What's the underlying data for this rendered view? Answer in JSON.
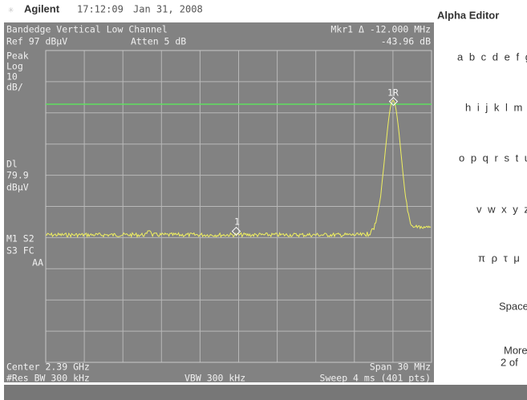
{
  "header": {
    "brand": "Agilent",
    "time": "17:12:09",
    "date": "Jan 31, 2008"
  },
  "screen": {
    "title": "Bandedge Vertical Low Channel",
    "ref": "Ref 97 dBµV",
    "atten": "Atten 5 dB",
    "marker_readout": "Mkr1 Δ  -12.000 MHz",
    "marker_value": "-43.96 dB",
    "left_labels": [
      "Peak",
      "Log",
      "10",
      "dB/",
      "Dl",
      "79.9",
      "dBµV",
      "M1  S2",
      "S3  FC",
      "AA"
    ],
    "markers": [
      "1",
      "1R"
    ],
    "center": "Center 2.39 GHz",
    "span": "Span 30 MHz",
    "res_bw": "#Res BW 300 kHz",
    "vbw": "VBW 300 kHz",
    "sweep": "Sweep 4 ms (401 pts)"
  },
  "softkeys": {
    "title": "Alpha Editor",
    "keys": [
      "a b c d e f g",
      "h i j k l m n",
      "o p q r s t u",
      "v w x y z",
      "π ρ τ μ",
      "Space",
      "More",
      "2 of"
    ]
  }
}
